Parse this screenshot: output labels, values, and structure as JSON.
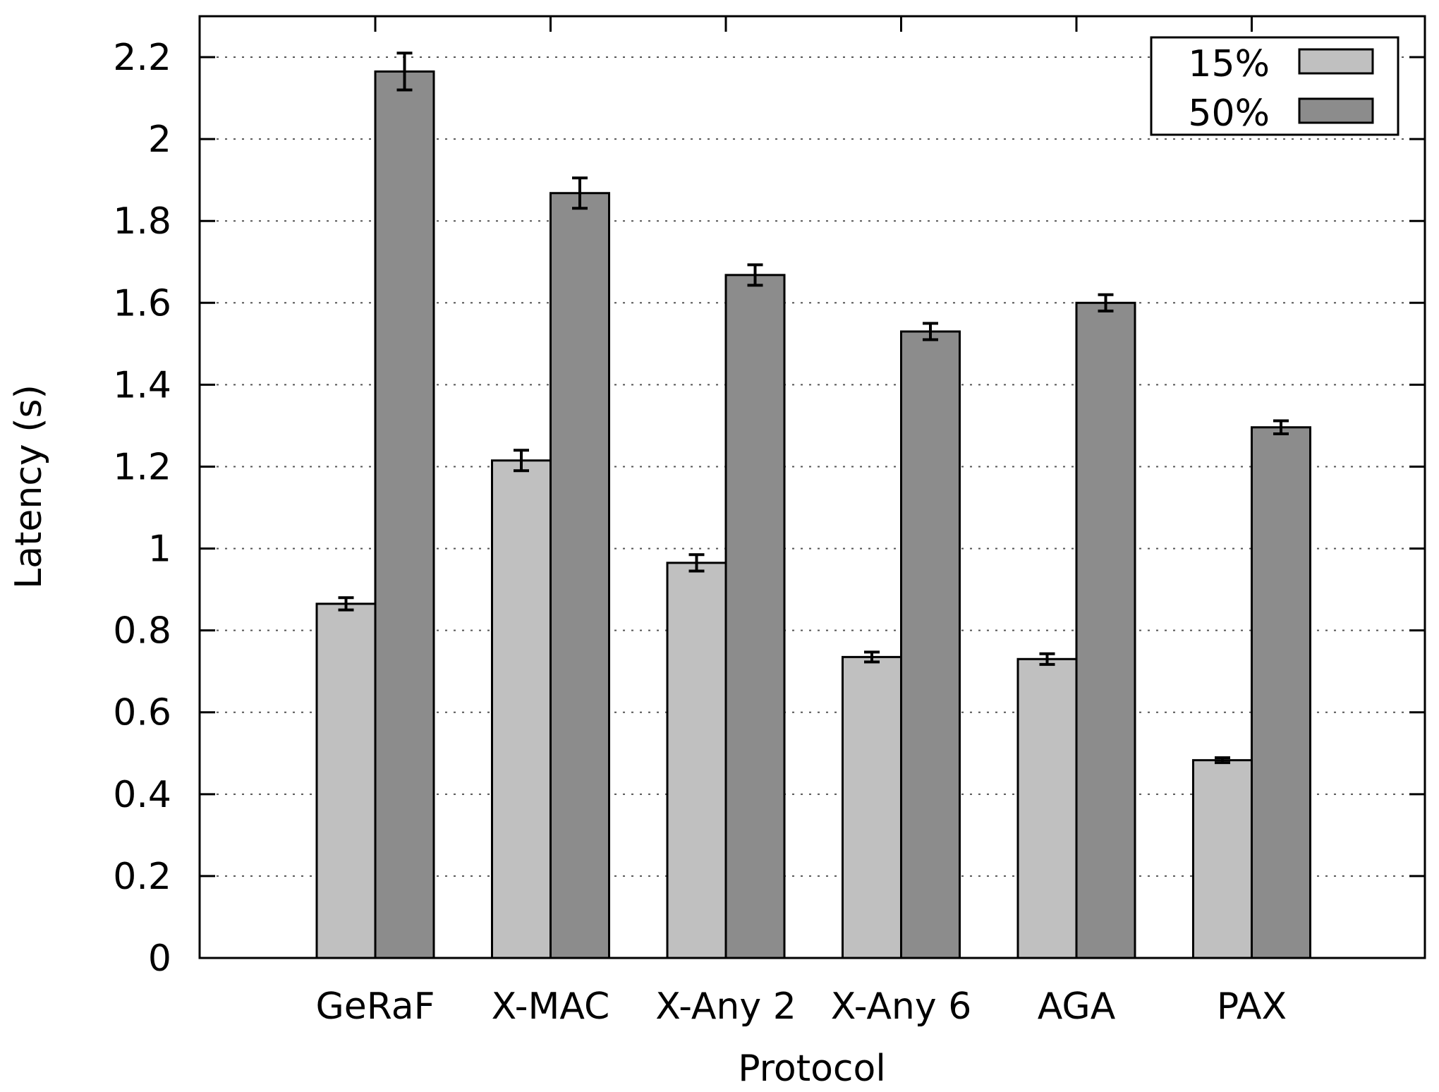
{
  "chart_data": {
    "type": "bar",
    "title": "",
    "xlabel": "Protocol",
    "ylabel": "Latency (s)",
    "ylim": [
      0,
      2.3
    ],
    "yticks": [
      "0",
      "0.2",
      "0.4",
      "0.6",
      "0.8",
      "1",
      "1.2",
      "1.4",
      "1.6",
      "1.8",
      "2",
      "2.2"
    ],
    "ytick_values": [
      0,
      0.2,
      0.4,
      0.6,
      0.8,
      1.0,
      1.2,
      1.4,
      1.6,
      1.8,
      2.0,
      2.2
    ],
    "grid": true,
    "legend_position": "top-right",
    "categories": [
      "GeRaF",
      "X-MAC",
      "X-Any 2",
      "X-Any 6",
      "AGA",
      "PAX"
    ],
    "series": [
      {
        "name": "15%",
        "color": "#c0c0c0",
        "values": [
          0.865,
          1.215,
          0.965,
          0.735,
          0.73,
          0.483
        ],
        "errors": [
          0.015,
          0.025,
          0.02,
          0.012,
          0.013,
          0.006
        ]
      },
      {
        "name": "50%",
        "color": "#8c8c8c",
        "values": [
          2.165,
          1.868,
          1.668,
          1.53,
          1.6,
          1.296
        ],
        "errors": [
          0.045,
          0.037,
          0.025,
          0.02,
          0.02,
          0.016
        ]
      }
    ]
  }
}
